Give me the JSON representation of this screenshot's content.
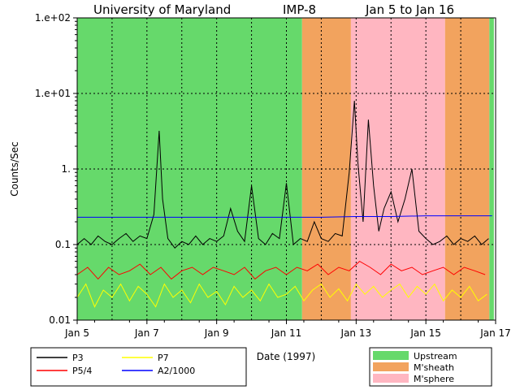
{
  "header": {
    "institution": "University of Maryland",
    "spacecraft": "IMP-8",
    "date_range": "Jan 5 to Jan 16"
  },
  "chart_data": {
    "type": "line",
    "xlabel": "Date (1997)",
    "ylabel": "Counts/Sec",
    "y_scale": "log",
    "ylim": [
      0.01,
      100
    ],
    "xlim_days": [
      5,
      17
    ],
    "grid": true,
    "x_ticks": [
      {
        "day": 5,
        "label": "Jan 5"
      },
      {
        "day": 7,
        "label": "Jan 7"
      },
      {
        "day": 9,
        "label": "Jan 9"
      },
      {
        "day": 11,
        "label": "Jan 11"
      },
      {
        "day": 13,
        "label": "Jan 13"
      },
      {
        "day": 15,
        "label": "Jan 15"
      },
      {
        "day": 17,
        "label": "Jan 17"
      }
    ],
    "y_ticks": [
      {
        "value": 0.01,
        "label": "0.01"
      },
      {
        "value": 0.1,
        "label": "0.1"
      },
      {
        "value": 1,
        "label": "1."
      },
      {
        "value": 10,
        "label": "1.e+01"
      },
      {
        "value": 100,
        "label": "1.e+02"
      }
    ],
    "regions": [
      {
        "name": "Upstream",
        "color": "#66d96b",
        "start_day": 5.0,
        "end_day": 11.45
      },
      {
        "name": "M'sheath",
        "color": "#f2a35e",
        "start_day": 11.45,
        "end_day": 12.85
      },
      {
        "name": "M'sphere",
        "color": "#ffb6c1",
        "start_day": 12.85,
        "end_day": 15.55
      },
      {
        "name": "M'sheath",
        "color": "#f2a35e",
        "start_day": 15.55,
        "end_day": 16.82
      },
      {
        "name": "Upstream",
        "color": "#66d96b",
        "start_day": 16.82,
        "end_day": 16.95
      }
    ],
    "series": [
      {
        "name": "P3",
        "color": "#000000",
        "x": [
          5.0,
          5.2,
          5.4,
          5.6,
          5.8,
          6.0,
          6.2,
          6.4,
          6.6,
          6.8,
          7.0,
          7.2,
          7.35,
          7.45,
          7.6,
          7.8,
          8.0,
          8.2,
          8.4,
          8.6,
          8.8,
          9.0,
          9.2,
          9.4,
          9.6,
          9.8,
          10.0,
          10.2,
          10.4,
          10.6,
          10.8,
          11.0,
          11.2,
          11.4,
          11.6,
          11.8,
          12.0,
          12.2,
          12.4,
          12.6,
          12.8,
          12.95,
          13.05,
          13.2,
          13.35,
          13.5,
          13.65,
          13.8,
          14.0,
          14.2,
          14.4,
          14.6,
          14.8,
          15.0,
          15.2,
          15.4,
          15.6,
          15.8,
          16.0,
          16.2,
          16.4,
          16.6,
          16.8
        ],
        "y": [
          0.1,
          0.12,
          0.1,
          0.13,
          0.11,
          0.1,
          0.12,
          0.14,
          0.11,
          0.13,
          0.12,
          0.25,
          3.2,
          0.4,
          0.12,
          0.09,
          0.11,
          0.1,
          0.13,
          0.1,
          0.12,
          0.11,
          0.13,
          0.3,
          0.15,
          0.11,
          0.6,
          0.12,
          0.1,
          0.14,
          0.12,
          0.65,
          0.1,
          0.12,
          0.11,
          0.2,
          0.12,
          0.11,
          0.14,
          0.13,
          0.9,
          8.0,
          1.2,
          0.2,
          4.5,
          0.6,
          0.15,
          0.3,
          0.5,
          0.2,
          0.4,
          1.0,
          0.15,
          0.12,
          0.1,
          0.11,
          0.13,
          0.1,
          0.12,
          0.11,
          0.13,
          0.1,
          0.12
        ]
      },
      {
        "name": "P5/4",
        "color": "#ff0000",
        "x": [
          5.0,
          5.3,
          5.6,
          5.9,
          6.2,
          6.5,
          6.8,
          7.1,
          7.4,
          7.7,
          8.0,
          8.3,
          8.6,
          8.9,
          9.2,
          9.5,
          9.8,
          10.1,
          10.4,
          10.7,
          11.0,
          11.3,
          11.6,
          11.9,
          12.2,
          12.5,
          12.8,
          13.1,
          13.4,
          13.7,
          14.0,
          14.3,
          14.6,
          14.9,
          15.2,
          15.5,
          15.8,
          16.1,
          16.4,
          16.7
        ],
        "y": [
          0.04,
          0.05,
          0.035,
          0.05,
          0.04,
          0.045,
          0.055,
          0.04,
          0.05,
          0.035,
          0.045,
          0.05,
          0.04,
          0.05,
          0.045,
          0.04,
          0.05,
          0.035,
          0.045,
          0.05,
          0.04,
          0.05,
          0.045,
          0.055,
          0.04,
          0.05,
          0.045,
          0.06,
          0.05,
          0.04,
          0.055,
          0.045,
          0.05,
          0.04,
          0.045,
          0.05,
          0.04,
          0.05,
          0.045,
          0.04
        ]
      },
      {
        "name": "P7",
        "color": "#ffff00",
        "x": [
          5.0,
          5.25,
          5.5,
          5.75,
          6.0,
          6.25,
          6.5,
          6.75,
          7.0,
          7.25,
          7.5,
          7.75,
          8.0,
          8.25,
          8.5,
          8.75,
          9.0,
          9.25,
          9.5,
          9.75,
          10.0,
          10.25,
          10.5,
          10.75,
          11.0,
          11.25,
          11.5,
          11.75,
          12.0,
          12.25,
          12.5,
          12.75,
          13.0,
          13.25,
          13.5,
          13.75,
          14.0,
          14.25,
          14.5,
          14.75,
          15.0,
          15.25,
          15.5,
          15.75,
          16.0,
          16.25,
          16.5,
          16.75
        ],
        "y": [
          0.02,
          0.03,
          0.015,
          0.025,
          0.02,
          0.03,
          0.018,
          0.028,
          0.022,
          0.015,
          0.03,
          0.02,
          0.025,
          0.017,
          0.03,
          0.02,
          0.024,
          0.016,
          0.028,
          0.02,
          0.025,
          0.018,
          0.03,
          0.02,
          0.022,
          0.028,
          0.018,
          0.025,
          0.03,
          0.02,
          0.026,
          0.018,
          0.03,
          0.022,
          0.028,
          0.02,
          0.025,
          0.03,
          0.02,
          0.028,
          0.022,
          0.03,
          0.018,
          0.025,
          0.02,
          0.028,
          0.018,
          0.022
        ]
      },
      {
        "name": "A2/1000",
        "color": "#0000ff",
        "x": [
          5.0,
          6.0,
          7.0,
          8.0,
          9.0,
          10.0,
          11.0,
          12.0,
          13.0,
          14.0,
          15.0,
          16.0,
          16.9
        ],
        "y": [
          0.23,
          0.23,
          0.23,
          0.23,
          0.23,
          0.23,
          0.23,
          0.23,
          0.235,
          0.235,
          0.24,
          0.24,
          0.24
        ]
      }
    ],
    "legend": {
      "placement": "bottom-left",
      "entries": [
        {
          "label": "P3",
          "color": "#000000"
        },
        {
          "label": "P7",
          "color": "#ffff00"
        },
        {
          "label": "P5/4",
          "color": "#ff0000"
        },
        {
          "label": "A2/1000",
          "color": "#0000ff"
        }
      ]
    },
    "region_legend": {
      "placement": "bottom-right",
      "entries": [
        {
          "label": "Upstream",
          "color": "#66d96b"
        },
        {
          "label": "M'sheath",
          "color": "#f2a35e"
        },
        {
          "label": "M'sphere",
          "color": "#ffb6c1"
        }
      ]
    }
  }
}
